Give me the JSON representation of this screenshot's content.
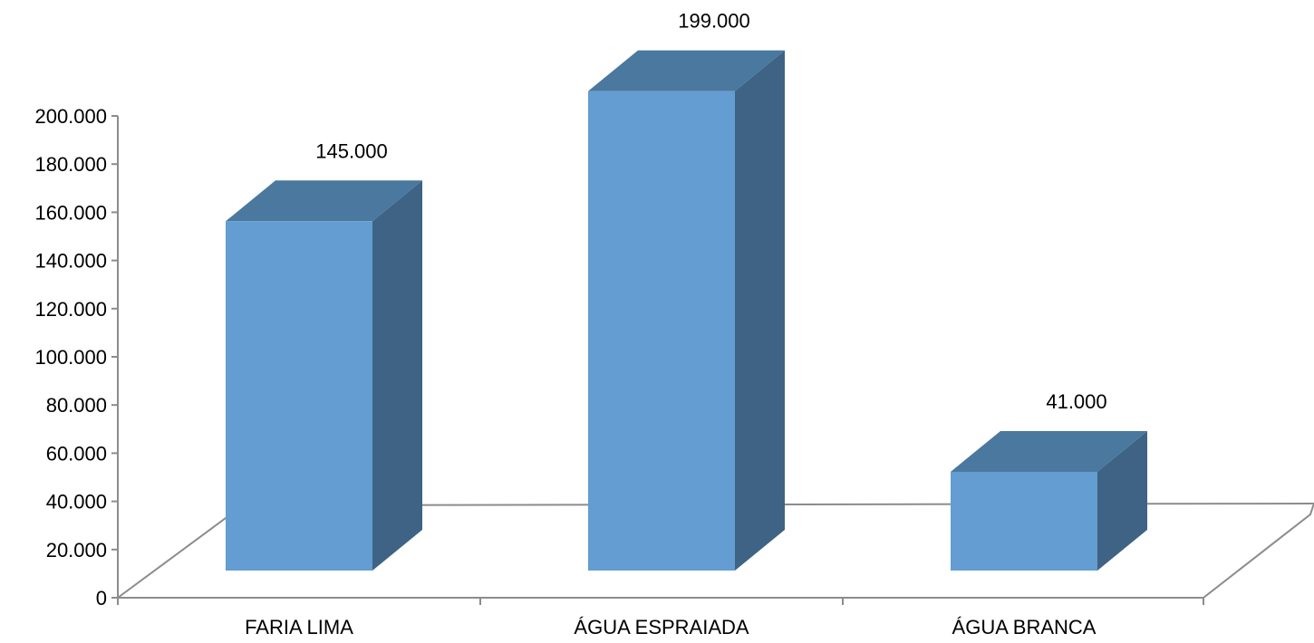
{
  "chart_data": {
    "type": "bar",
    "style": "3d-column",
    "categories": [
      "FARIA LIMA",
      "ÁGUA ESPRAIADA",
      "ÁGUA BRANCA"
    ],
    "values": [
      145000,
      199000,
      41000
    ],
    "value_labels": [
      "145.000",
      "199.000",
      "41.000"
    ],
    "ylim": [
      0,
      200000
    ],
    "yticks": [
      {
        "value": 0,
        "label": "0"
      },
      {
        "value": 20000,
        "label": "20.000"
      },
      {
        "value": 40000,
        "label": "40.000"
      },
      {
        "value": 60000,
        "label": "60.000"
      },
      {
        "value": 80000,
        "label": "80.000"
      },
      {
        "value": 100000,
        "label": "100.000"
      },
      {
        "value": 120000,
        "label": "120.000"
      },
      {
        "value": 140000,
        "label": "140.000"
      },
      {
        "value": 160000,
        "label": "160.000"
      },
      {
        "value": 180000,
        "label": "180.000"
      },
      {
        "value": 200000,
        "label": "200.000"
      }
    ],
    "title": "",
    "xlabel": "",
    "ylabel": "",
    "grid": false,
    "legend": "none",
    "colors": {
      "bar_front": "#639DD1",
      "bar_top": "#4A789F",
      "bar_side": "#3E6384",
      "axis": "#8C8C8C"
    }
  }
}
